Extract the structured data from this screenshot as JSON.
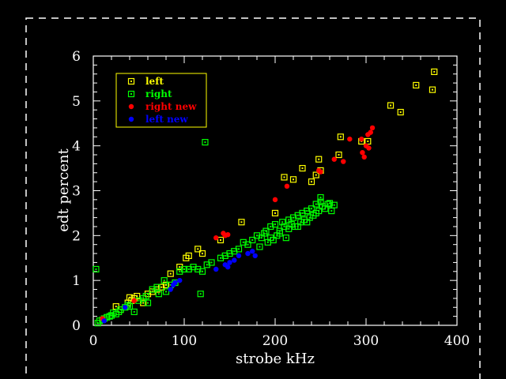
{
  "chart_data": {
    "type": "scatter",
    "xlabel": "strobe kHz",
    "ylabel": "edt  percent",
    "xlim": [
      0,
      400
    ],
    "ylim": [
      0,
      6
    ],
    "x_ticks": [
      0,
      100,
      200,
      300,
      400
    ],
    "y_ticks": [
      0,
      1,
      2,
      3,
      4,
      5,
      6
    ],
    "legend_position": "top-left",
    "grid": false,
    "series": [
      {
        "name": "left",
        "marker": "open-square",
        "color": "#ffff00",
        "points": [
          [
            25,
            0.42
          ],
          [
            30,
            0.35
          ],
          [
            38,
            0.5
          ],
          [
            40,
            0.62
          ],
          [
            42,
            0.55
          ],
          [
            45,
            0.6
          ],
          [
            48,
            0.65
          ],
          [
            55,
            0.5
          ],
          [
            60,
            0.7
          ],
          [
            65,
            0.75
          ],
          [
            70,
            0.8
          ],
          [
            75,
            0.85
          ],
          [
            80,
            0.9
          ],
          [
            85,
            1.15
          ],
          [
            95,
            1.3
          ],
          [
            102,
            1.5
          ],
          [
            105,
            1.55
          ],
          [
            115,
            1.7
          ],
          [
            120,
            1.6
          ],
          [
            140,
            1.9
          ],
          [
            163,
            2.3
          ],
          [
            200,
            2.5
          ],
          [
            210,
            3.3
          ],
          [
            220,
            3.25
          ],
          [
            230,
            3.5
          ],
          [
            240,
            3.2
          ],
          [
            245,
            3.35
          ],
          [
            248,
            3.7
          ],
          [
            250,
            3.45
          ],
          [
            270,
            3.8
          ],
          [
            272,
            4.2
          ],
          [
            295,
            4.1
          ],
          [
            302,
            4.1
          ],
          [
            327,
            4.9
          ],
          [
            338,
            4.75
          ],
          [
            355,
            5.35
          ],
          [
            373,
            5.25
          ],
          [
            375,
            5.65
          ]
        ]
      },
      {
        "name": "right",
        "marker": "open-square",
        "color": "#00ff00",
        "points": [
          [
            3,
            1.25
          ],
          [
            5,
            0.05
          ],
          [
            7,
            0.1
          ],
          [
            10,
            0.12
          ],
          [
            12,
            0.15
          ],
          [
            15,
            0.18
          ],
          [
            18,
            0.2
          ],
          [
            20,
            0.22
          ],
          [
            22,
            0.28
          ],
          [
            25,
            0.25
          ],
          [
            28,
            0.3
          ],
          [
            30,
            0.35
          ],
          [
            35,
            0.4
          ],
          [
            38,
            0.45
          ],
          [
            40,
            0.42
          ],
          [
            45,
            0.3
          ],
          [
            50,
            0.55
          ],
          [
            55,
            0.6
          ],
          [
            58,
            0.65
          ],
          [
            60,
            0.5
          ],
          [
            65,
            0.8
          ],
          [
            70,
            0.85
          ],
          [
            72,
            0.7
          ],
          [
            78,
            1.0
          ],
          [
            80,
            0.75
          ],
          [
            85,
            0.9
          ],
          [
            90,
            0.95
          ],
          [
            95,
            1.2
          ],
          [
            100,
            1.25
          ],
          [
            105,
            1.25
          ],
          [
            110,
            1.3
          ],
          [
            115,
            1.25
          ],
          [
            118,
            0.7
          ],
          [
            120,
            1.2
          ],
          [
            123,
            4.08
          ],
          [
            125,
            1.35
          ],
          [
            130,
            1.4
          ],
          [
            140,
            1.5
          ],
          [
            145,
            1.55
          ],
          [
            150,
            1.6
          ],
          [
            155,
            1.65
          ],
          [
            160,
            1.7
          ],
          [
            165,
            1.85
          ],
          [
            170,
            1.8
          ],
          [
            175,
            1.9
          ],
          [
            180,
            2.0
          ],
          [
            183,
            1.75
          ],
          [
            185,
            1.95
          ],
          [
            188,
            2.05
          ],
          [
            190,
            2.1
          ],
          [
            192,
            1.85
          ],
          [
            195,
            2.2
          ],
          [
            198,
            1.9
          ],
          [
            200,
            2.25
          ],
          [
            202,
            2.0
          ],
          [
            205,
            2.1
          ],
          [
            208,
            2.3
          ],
          [
            210,
            2.2
          ],
          [
            212,
            1.95
          ],
          [
            215,
            2.35
          ],
          [
            218,
            2.25
          ],
          [
            220,
            2.4
          ],
          [
            222,
            2.2
          ],
          [
            225,
            2.45
          ],
          [
            228,
            2.3
          ],
          [
            230,
            2.5
          ],
          [
            232,
            2.35
          ],
          [
            235,
            2.55
          ],
          [
            238,
            2.4
          ],
          [
            240,
            2.6
          ],
          [
            242,
            2.45
          ],
          [
            245,
            2.7
          ],
          [
            248,
            2.55
          ],
          [
            250,
            2.75
          ],
          [
            252,
            2.65
          ],
          [
            255,
            2.6
          ],
          [
            258,
            2.7
          ],
          [
            260,
            2.72
          ],
          [
            262,
            2.55
          ],
          [
            265,
            2.68
          ],
          [
            250,
            2.85
          ],
          [
            245,
            2.5
          ],
          [
            235,
            2.3
          ],
          [
            225,
            2.2
          ],
          [
            215,
            2.15
          ],
          [
            205,
            2.05
          ],
          [
            195,
            1.95
          ]
        ]
      },
      {
        "name": "right new",
        "marker": "filled-circle",
        "color": "#ff0000",
        "points": [
          [
            10,
            0.15
          ],
          [
            45,
            0.55
          ],
          [
            135,
            1.95
          ],
          [
            143,
            2.05
          ],
          [
            145,
            2.0
          ],
          [
            148,
            2.02
          ],
          [
            200,
            2.8
          ],
          [
            213,
            3.1
          ],
          [
            248,
            3.45
          ],
          [
            250,
            3.42
          ],
          [
            265,
            3.7
          ],
          [
            275,
            3.65
          ],
          [
            282,
            4.15
          ],
          [
            295,
            4.15
          ],
          [
            296,
            3.85
          ],
          [
            298,
            3.75
          ],
          [
            300,
            4.0
          ],
          [
            302,
            4.25
          ],
          [
            303,
            3.95
          ],
          [
            305,
            4.3
          ],
          [
            307,
            4.4
          ]
        ]
      },
      {
        "name": "left new",
        "marker": "filled-circle",
        "color": "#0000ff",
        "points": [
          [
            12,
            0.1
          ],
          [
            35,
            0.4
          ],
          [
            85,
            0.8
          ],
          [
            88,
            0.9
          ],
          [
            90,
            0.95
          ],
          [
            95,
            1.0
          ],
          [
            135,
            1.25
          ],
          [
            145,
            1.35
          ],
          [
            148,
            1.3
          ],
          [
            150,
            1.4
          ],
          [
            155,
            1.45
          ],
          [
            160,
            1.55
          ],
          [
            170,
            1.6
          ],
          [
            175,
            1.65
          ],
          [
            178,
            1.55
          ]
        ]
      }
    ]
  }
}
